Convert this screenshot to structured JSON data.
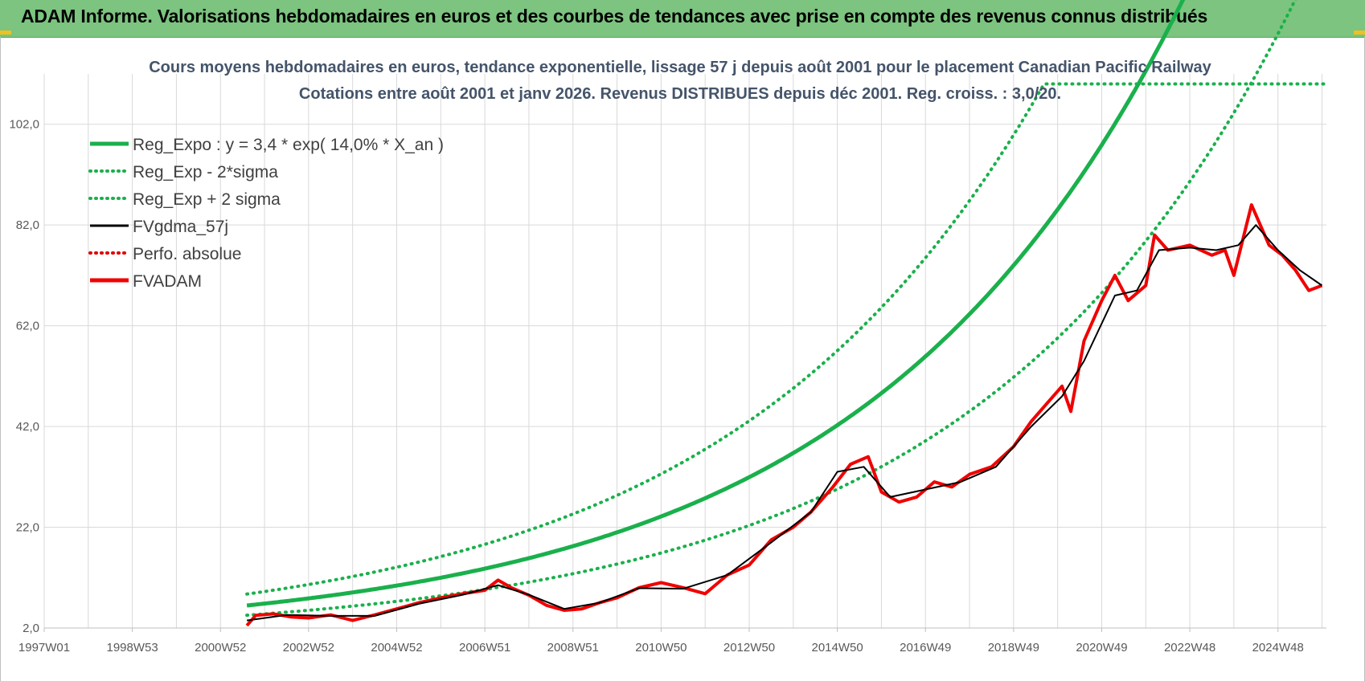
{
  "banner": {
    "title": "ADAM Informe. Valorisations hebdomadaires en euros et des courbes de tendances avec prise en compte des revenus connus distribués"
  },
  "colors": {
    "banner": "#7cc47f",
    "reg_expo": "#1ab04c",
    "sigma": "#1ab04c",
    "fvgdma": "#000000",
    "perfo": "#e00000",
    "fvadam": "#f00000"
  },
  "chart_data": {
    "type": "line",
    "title_line1": "Cours moyens hebdomadaires en euros, tendance exponentielle, lissage 57 j depuis août 2001 pour le placement Canadian Pacific Railway",
    "title_line2": "Cotations entre août 2001 et janv 2026. Revenus DISTRIBUES depuis déc 2001. Reg. croiss. : 3,0/20.",
    "x_tick_labels": [
      "1997W01",
      "1998W53",
      "2000W52",
      "2002W52",
      "2004W52",
      "2006W51",
      "2008W51",
      "2010W50",
      "2012W50",
      "2014W50",
      "2016W49",
      "2018W49",
      "2020W49",
      "2022W48",
      "2024W48"
    ],
    "x_range_years": [
      1997.0,
      2026.1
    ],
    "y_tick_labels": [
      "2,0",
      "22,0",
      "42,0",
      "62,0",
      "82,0",
      "102,0"
    ],
    "ylim": [
      2,
      112
    ],
    "grid": true,
    "legend_position": "top-left",
    "legend": [
      {
        "label": "Reg_Expo : y = 3,4 * exp( 14,0% *  X_an )",
        "style": "thick-solid",
        "color": "#1ab04c"
      },
      {
        "label": "Reg_Exp - 2*sigma",
        "style": "dotted",
        "color": "#1ab04c"
      },
      {
        "label": "Reg_Exp + 2 sigma",
        "style": "dotted",
        "color": "#1ab04c"
      },
      {
        "label": "FVgdma_57j",
        "style": "solid",
        "color": "#000000"
      },
      {
        "label": "Perfo. absolue",
        "style": "dotted",
        "color": "#e00000"
      },
      {
        "label": "FVADAM",
        "style": "thick-solid",
        "color": "#f00000"
      }
    ],
    "regression": {
      "a": 3.4,
      "rate": 0.14,
      "start_year": 2001.6,
      "upper_factor": 1.35,
      "lower_factor": 0.7,
      "upper_cap": 110
    },
    "series_fvadam": {
      "x": [
        2001.6,
        2001.8,
        2002.2,
        2002.6,
        2003.0,
        2003.5,
        2004.0,
        2004.5,
        2005.0,
        2005.5,
        2006.0,
        2006.5,
        2007.0,
        2007.3,
        2007.6,
        2008.0,
        2008.4,
        2008.8,
        2009.2,
        2009.6,
        2010.0,
        2010.5,
        2011.0,
        2011.5,
        2012.0,
        2012.5,
        2013.0,
        2013.5,
        2014.0,
        2014.4,
        2014.9,
        2015.3,
        2015.7,
        2016.0,
        2016.4,
        2016.8,
        2017.2,
        2017.6,
        2018.0,
        2018.5,
        2019.0,
        2019.4,
        2019.8,
        2020.1,
        2020.3,
        2020.6,
        2021.0,
        2021.3,
        2021.6,
        2022.0,
        2022.2,
        2022.5,
        2023.0,
        2023.5,
        2023.8,
        2024.0,
        2024.4,
        2024.8,
        2025.1,
        2025.4,
        2025.7,
        2026.0
      ],
      "y": [
        2.5,
        4.5,
        4.8,
        4.2,
        4.0,
        4.6,
        3.5,
        4.6,
        5.8,
        7.0,
        8.0,
        8.8,
        9.5,
        11.5,
        10.0,
        8.5,
        6.5,
        5.5,
        5.8,
        7.0,
        8.0,
        10.0,
        11.0,
        10.0,
        8.8,
        12.5,
        14.5,
        19.5,
        22.0,
        25.0,
        30.0,
        34.5,
        36.0,
        29.0,
        27.0,
        28.0,
        31.0,
        30.0,
        32.5,
        34.0,
        38.0,
        43.0,
        47.0,
        50.0,
        45.0,
        59.0,
        67.0,
        72.0,
        67.0,
        70.0,
        80.0,
        77.0,
        78.0,
        76.0,
        77.0,
        72.0,
        86.0,
        78.0,
        76.0,
        73.0,
        69.0,
        70.0
      ]
    },
    "series_fvgdma": {
      "x": [
        2001.6,
        2002.5,
        2003.5,
        2004.5,
        2005.5,
        2006.5,
        2007.3,
        2008.0,
        2008.8,
        2009.6,
        2010.5,
        2011.5,
        2012.5,
        2013.5,
        2014.4,
        2015.0,
        2015.6,
        2016.2,
        2017.0,
        2017.8,
        2018.6,
        2019.4,
        2020.1,
        2020.6,
        2021.3,
        2021.8,
        2022.3,
        2023.0,
        2023.6,
        2024.1,
        2024.5,
        2025.0,
        2025.5,
        2026.0
      ],
      "y": [
        3.5,
        4.6,
        4.4,
        4.4,
        6.8,
        8.6,
        10.5,
        8.6,
        5.8,
        7.0,
        9.9,
        9.8,
        12.5,
        19.0,
        25.0,
        33.0,
        34.0,
        28.0,
        29.5,
        31.0,
        34.0,
        42.0,
        48.0,
        55.0,
        68.0,
        69.0,
        77.0,
        77.5,
        77.0,
        78.0,
        82.0,
        77.0,
        73.0,
        70.0
      ]
    }
  }
}
